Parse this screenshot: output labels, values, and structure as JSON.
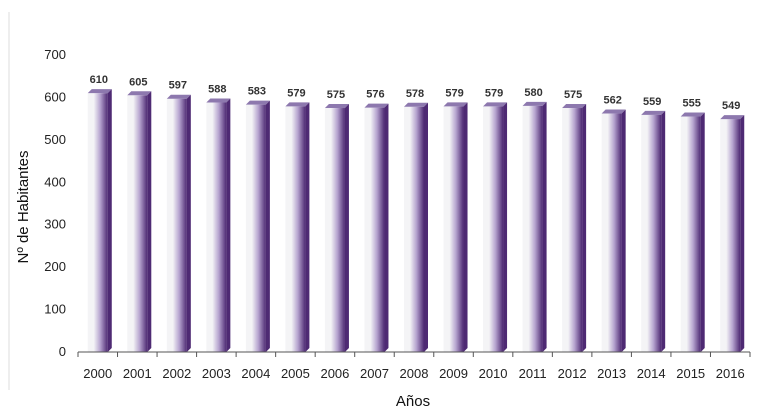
{
  "chart_data": {
    "type": "bar",
    "title": "",
    "xlabel": "Años",
    "ylabel": "Nº de Habitantes",
    "ylim": [
      0,
      700
    ],
    "yticks": [
      0,
      100,
      200,
      300,
      400,
      500,
      600,
      700
    ],
    "grid": false,
    "legend": "none",
    "categories": [
      "2000",
      "2001",
      "2002",
      "2003",
      "2004",
      "2005",
      "2006",
      "2007",
      "2008",
      "2009",
      "2010",
      "2011",
      "2012",
      "2013",
      "2014",
      "2015",
      "2016"
    ],
    "values": [
      610,
      605,
      597,
      588,
      583,
      579,
      575,
      576,
      578,
      579,
      579,
      580,
      575,
      562,
      559,
      555,
      549
    ],
    "colors": {
      "bar_light": "#f4f4f6",
      "bar_mid": "#b6a4cf",
      "bar_dark": "#4e2a73",
      "bar_top": "#8d78ae",
      "axis": "#555555"
    }
  }
}
